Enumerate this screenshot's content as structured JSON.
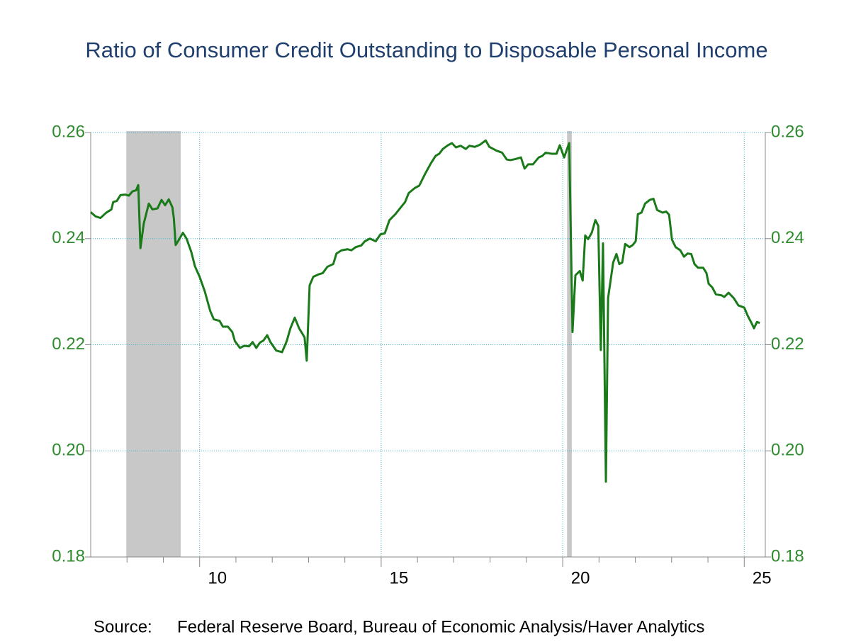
{
  "chart_data": {
    "type": "line",
    "title": "Ratio of Consumer Credit Outstanding to Disposable Personal Income",
    "source_label": "Source:",
    "source": "Federal Reserve Board, Bureau of Economic Analysis/Haver Analytics",
    "xlim": [
      2007,
      2025.58
    ],
    "xticks": [
      {
        "value": 2010,
        "label": "10"
      },
      {
        "value": 2015,
        "label": "15"
      },
      {
        "value": 2020,
        "label": "20"
      },
      {
        "value": 2025,
        "label": "25"
      }
    ],
    "xticks_minor": [
      2008,
      2009,
      2011,
      2012,
      2013,
      2014,
      2016,
      2017,
      2018,
      2019,
      2021,
      2022,
      2023,
      2024
    ],
    "ylim": [
      0.18,
      0.26
    ],
    "yticks": [
      0.18,
      {
        "value": 0.2,
        "label": "0.20"
      },
      0.22,
      0.24,
      0.26
    ],
    "grid": true,
    "recessions": [
      [
        2007.98,
        2009.48
      ],
      [
        2020.12,
        2020.25
      ]
    ],
    "recession_color": "#c8c8c8",
    "series": [
      {
        "name": "Ratio of Consumer Credit Outstanding to Disposable Personal Income",
        "color": "#1a7a1a",
        "x": [
          2007.0,
          2007.13,
          2007.27,
          2007.43,
          2007.57,
          2007.62,
          2007.72,
          2007.82,
          2007.95,
          2008.05,
          2008.15,
          2008.25,
          2008.31,
          2008.37,
          2008.46,
          2008.6,
          2008.7,
          2008.84,
          2008.95,
          2009.05,
          2009.15,
          2009.25,
          2009.29,
          2009.34,
          2009.44,
          2009.54,
          2009.64,
          2009.77,
          2009.87,
          2010.0,
          2010.14,
          2010.29,
          2010.39,
          2010.55,
          2010.64,
          2010.78,
          2010.9,
          2010.97,
          2011.11,
          2011.23,
          2011.36,
          2011.46,
          2011.56,
          2011.66,
          2011.76,
          2011.86,
          2011.95,
          2012.11,
          2012.27,
          2012.4,
          2012.5,
          2012.62,
          2012.74,
          2012.89,
          2012.95,
          2013.03,
          2013.13,
          2013.29,
          2013.39,
          2013.52,
          2013.68,
          2013.77,
          2013.91,
          2014.07,
          2014.18,
          2014.3,
          2014.45,
          2014.55,
          2014.69,
          2014.85,
          2014.98,
          2015.1,
          2015.23,
          2015.39,
          2015.53,
          2015.66,
          2015.76,
          2015.92,
          2016.05,
          2016.21,
          2016.37,
          2016.5,
          2016.6,
          2016.7,
          2016.84,
          2016.95,
          2017.06,
          2017.19,
          2017.33,
          2017.43,
          2017.58,
          2017.72,
          2017.88,
          2017.98,
          2018.17,
          2018.33,
          2018.46,
          2018.56,
          2018.7,
          2018.85,
          2018.95,
          2019.05,
          2019.18,
          2019.34,
          2019.44,
          2019.53,
          2019.69,
          2019.83,
          2019.92,
          2020.04,
          2020.12,
          2020.18,
          2020.27,
          2020.35,
          2020.47,
          2020.55,
          2020.62,
          2020.7,
          2020.8,
          2020.9,
          2020.98,
          2021.05,
          2021.11,
          2021.19,
          2021.25,
          2021.39,
          2021.48,
          2021.56,
          2021.64,
          2021.72,
          2021.84,
          2021.93,
          2022.01,
          2022.07,
          2022.17,
          2022.27,
          2022.4,
          2022.5,
          2022.6,
          2022.75,
          2022.85,
          2022.93,
          2023.01,
          2023.11,
          2023.24,
          2023.34,
          2023.44,
          2023.54,
          2023.63,
          2023.73,
          2023.87,
          2023.96,
          2024.02,
          2024.12,
          2024.22,
          2024.38,
          2024.45,
          2024.57,
          2024.71,
          2024.84,
          2025.0,
          2025.1,
          2025.2,
          2025.27,
          2025.35,
          2025.43
        ],
        "values": [
          0.245,
          0.2442,
          0.2439,
          0.2449,
          0.2455,
          0.2469,
          0.2471,
          0.2482,
          0.2483,
          0.2481,
          0.2489,
          0.2491,
          0.2501,
          0.2382,
          0.2428,
          0.2466,
          0.2455,
          0.2457,
          0.2473,
          0.2463,
          0.2474,
          0.2459,
          0.2438,
          0.2388,
          0.2399,
          0.2411,
          0.24,
          0.2375,
          0.2348,
          0.2328,
          0.2301,
          0.2264,
          0.2248,
          0.2245,
          0.2234,
          0.2234,
          0.2224,
          0.2207,
          0.2194,
          0.2198,
          0.2197,
          0.2205,
          0.2194,
          0.2204,
          0.2208,
          0.2218,
          0.2205,
          0.2189,
          0.2186,
          0.2207,
          0.2231,
          0.2251,
          0.2231,
          0.2214,
          0.217,
          0.2312,
          0.2328,
          0.2333,
          0.2335,
          0.2347,
          0.2352,
          0.2372,
          0.2378,
          0.238,
          0.2378,
          0.2384,
          0.2387,
          0.2395,
          0.24,
          0.2395,
          0.2408,
          0.241,
          0.2435,
          0.2446,
          0.2458,
          0.2469,
          0.2486,
          0.2495,
          0.25,
          0.2522,
          0.2542,
          0.2556,
          0.256,
          0.2569,
          0.2576,
          0.258,
          0.2572,
          0.2575,
          0.2569,
          0.2575,
          0.2573,
          0.2577,
          0.2585,
          0.2573,
          0.2566,
          0.2562,
          0.2549,
          0.2548,
          0.255,
          0.2553,
          0.2532,
          0.254,
          0.254,
          0.2553,
          0.2556,
          0.2562,
          0.256,
          0.256,
          0.2576,
          0.2553,
          0.2569,
          0.258,
          0.2224,
          0.2331,
          0.2339,
          0.2321,
          0.2406,
          0.2399,
          0.2411,
          0.2435,
          0.2424,
          0.219,
          0.2391,
          0.1942,
          0.2288,
          0.2355,
          0.2371,
          0.2352,
          0.2355,
          0.239,
          0.2384,
          0.2388,
          0.2395,
          0.2446,
          0.2449,
          0.2466,
          0.2473,
          0.2475,
          0.2454,
          0.2449,
          0.2451,
          0.2445,
          0.2398,
          0.2384,
          0.2378,
          0.2366,
          0.2372,
          0.2371,
          0.2352,
          0.2345,
          0.2345,
          0.2335,
          0.2315,
          0.2308,
          0.2295,
          0.2293,
          0.229,
          0.2298,
          0.2288,
          0.2274,
          0.227,
          0.2254,
          0.2241,
          0.2231,
          0.2243,
          0.2241
        ]
      }
    ]
  }
}
